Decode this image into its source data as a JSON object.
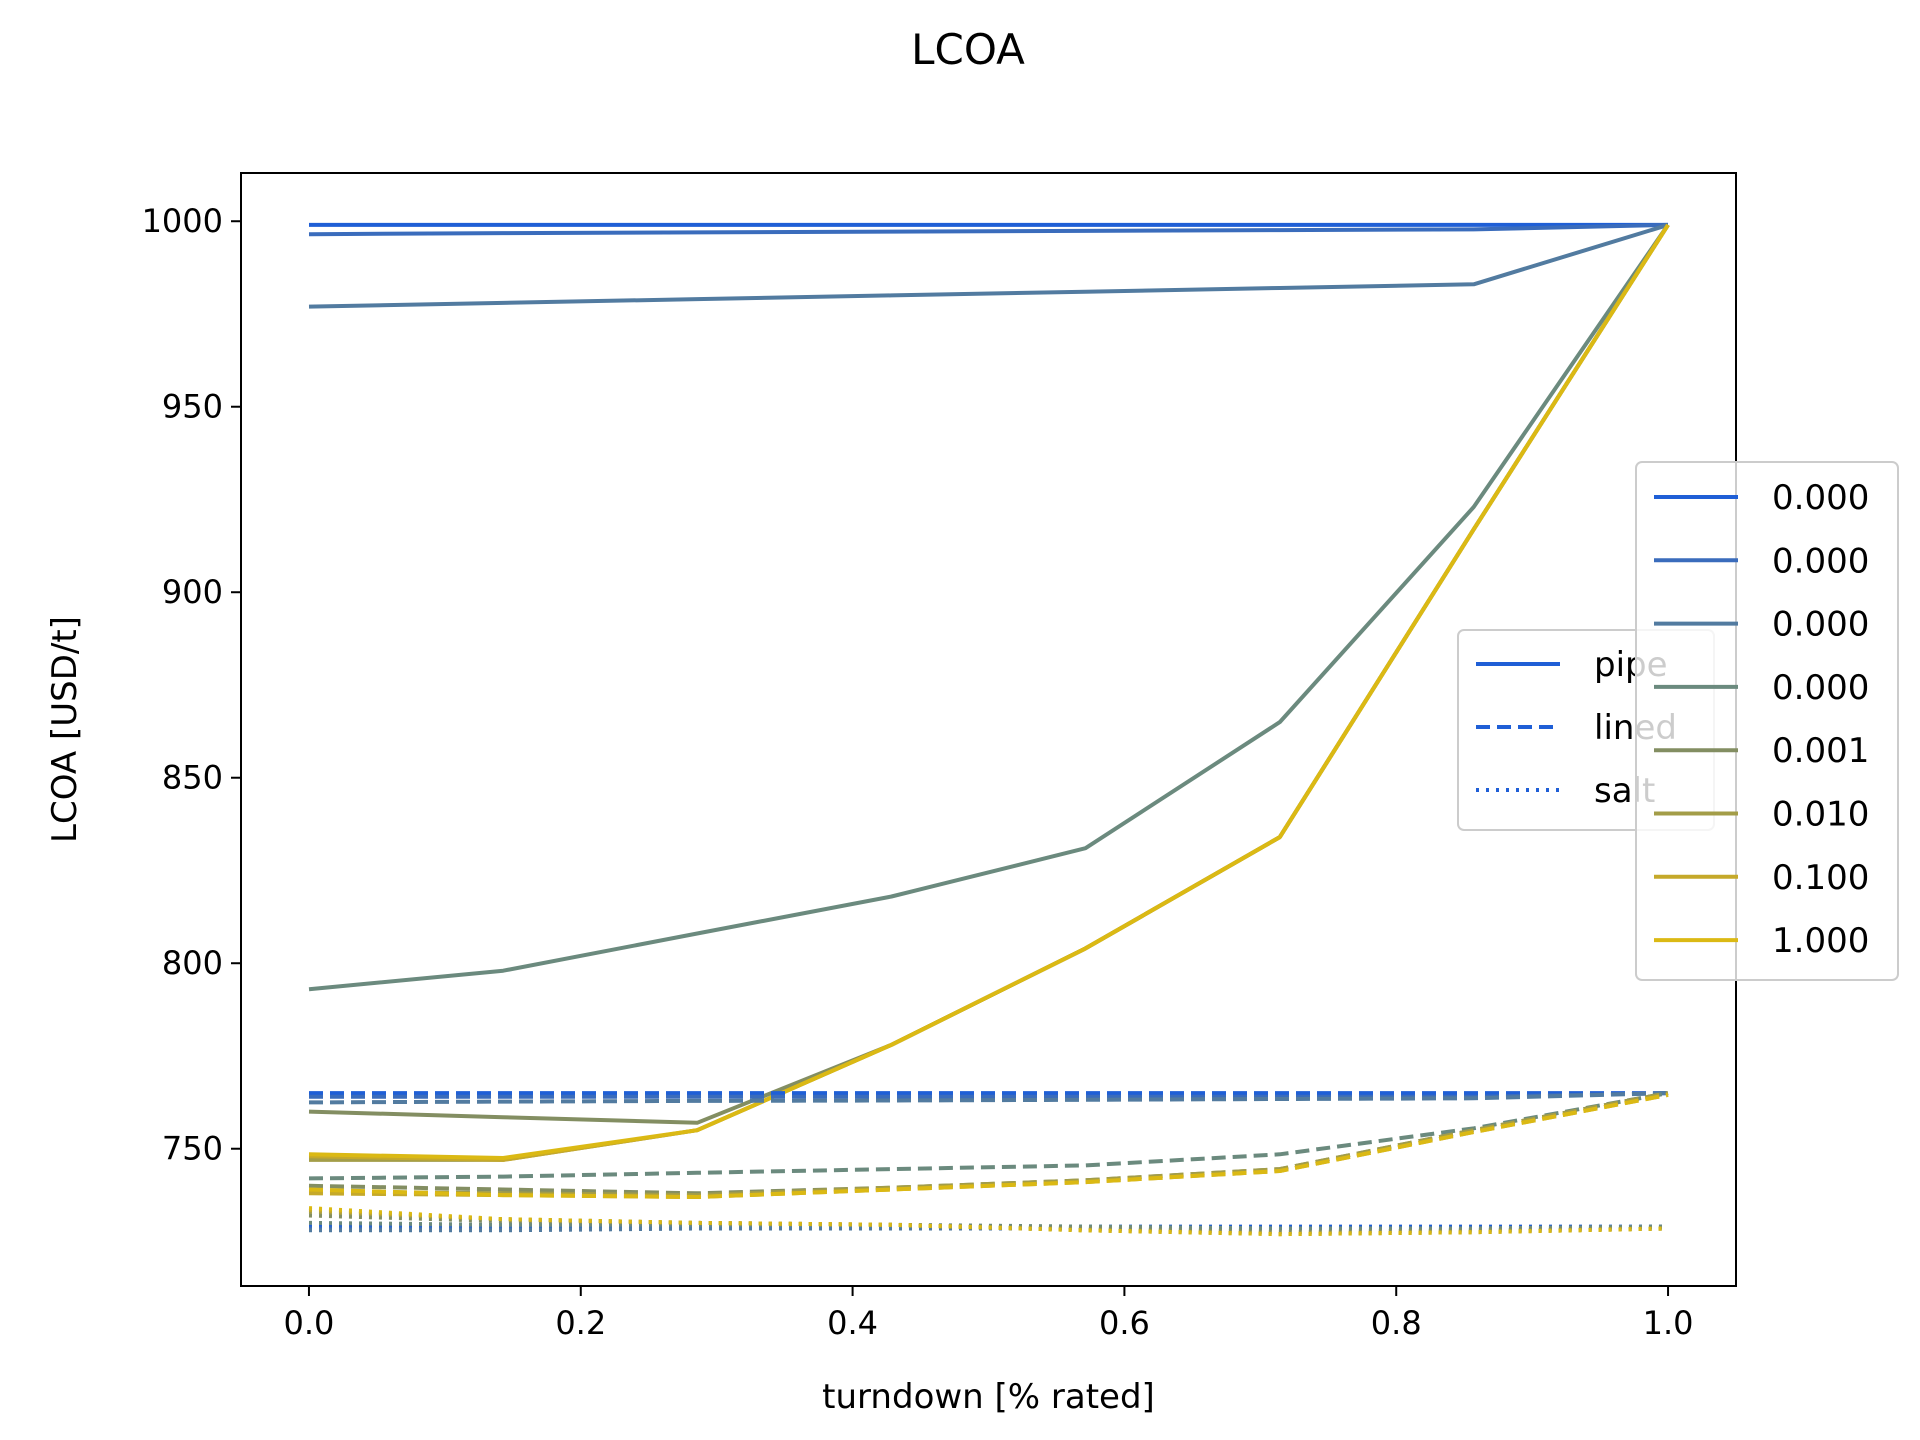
{
  "chart_data": {
    "type": "line",
    "title": "LCOA",
    "xlabel": "turndown [% rated]",
    "ylabel": "LCOA [USD/t]",
    "xlim": [
      -0.05,
      1.05
    ],
    "ylim": [
      713,
      1013
    ],
    "xticks": [
      0.0,
      0.2,
      0.4,
      0.6,
      0.8,
      1.0
    ],
    "xtick_labels": [
      "0.0",
      "0.2",
      "0.4",
      "0.6",
      "0.8",
      "1.0"
    ],
    "yticks": [
      750,
      800,
      850,
      900,
      950,
      1000
    ],
    "ytick_labels": [
      "750",
      "800",
      "850",
      "900",
      "950",
      "1000"
    ],
    "grid": false,
    "x": [
      0.0,
      0.1429,
      0.2857,
      0.4286,
      0.5714,
      0.7143,
      0.8571,
      1.0
    ],
    "storage_legend": {
      "placement": "center-right",
      "entries": [
        {
          "label": "pipe",
          "style": "solid"
        },
        {
          "label": "lined",
          "style": "dashed"
        },
        {
          "label": "salt",
          "style": "dotted"
        }
      ]
    },
    "color_legend": {
      "placement": "right, outside",
      "entries": [
        {
          "label": "0.000",
          "color": "#1f5fd6"
        },
        {
          "label": "0.000",
          "color": "#3a6cbc"
        },
        {
          "label": "0.000",
          "color": "#527ba0"
        },
        {
          "label": "0.000",
          "color": "#6b8a7e"
        },
        {
          "label": "0.001",
          "color": "#838e62"
        },
        {
          "label": "0.010",
          "color": "#a39d48"
        },
        {
          "label": "0.100",
          "color": "#c5a92a"
        },
        {
          "label": "1.000",
          "color": "#dbb914"
        }
      ]
    },
    "series": [
      {
        "color_index": 0,
        "style": "solid",
        "values": [
          999,
          999,
          999,
          999,
          999,
          999,
          999,
          999
        ]
      },
      {
        "color_index": 1,
        "style": "solid",
        "values": [
          996.5,
          996.8,
          997,
          997.2,
          997.4,
          997.6,
          997.8,
          999
        ]
      },
      {
        "color_index": 2,
        "style": "solid",
        "values": [
          977,
          978,
          979,
          980,
          981,
          982,
          983,
          999
        ]
      },
      {
        "color_index": 3,
        "style": "solid",
        "values": [
          793,
          798,
          808,
          818,
          831,
          865,
          923,
          999
        ]
      },
      {
        "color_index": 4,
        "style": "solid",
        "values": [
          760,
          758.5,
          757,
          778,
          804,
          834,
          917,
          999
        ]
      },
      {
        "color_index": 5,
        "style": "solid",
        "values": [
          747,
          747,
          755,
          778,
          804,
          834,
          917,
          999
        ]
      },
      {
        "color_index": 6,
        "style": "solid",
        "values": [
          748,
          747,
          755,
          778,
          804,
          834,
          917,
          999
        ]
      },
      {
        "color_index": 7,
        "style": "solid",
        "values": [
          748.5,
          747.5,
          755,
          778,
          804,
          834,
          917,
          999
        ]
      },
      {
        "color_index": 0,
        "style": "dashed",
        "values": [
          765,
          765,
          765,
          765,
          765,
          765,
          765,
          765
        ]
      },
      {
        "color_index": 1,
        "style": "dashed",
        "values": [
          764,
          764,
          764,
          764,
          764,
          764,
          764,
          765
        ]
      },
      {
        "color_index": 2,
        "style": "dashed",
        "values": [
          762.5,
          762.7,
          762.9,
          763,
          763.2,
          763.4,
          763.6,
          765
        ]
      },
      {
        "color_index": 3,
        "style": "dashed",
        "values": [
          742,
          742.5,
          743.5,
          744.5,
          745.5,
          748.5,
          755.5,
          765
        ]
      },
      {
        "color_index": 4,
        "style": "dashed",
        "values": [
          740,
          739,
          738,
          739.5,
          741.5,
          744.5,
          755,
          765
        ]
      },
      {
        "color_index": 5,
        "style": "dashed",
        "values": [
          738.5,
          738,
          737.5,
          739.5,
          741.5,
          744.5,
          755,
          765
        ]
      },
      {
        "color_index": 6,
        "style": "dashed",
        "values": [
          738,
          737.5,
          737,
          739,
          741,
          744,
          754.5,
          764.5
        ]
      },
      {
        "color_index": 7,
        "style": "dashed",
        "values": [
          739,
          737.5,
          737,
          739,
          741,
          744,
          754.5,
          764.5
        ]
      },
      {
        "color_index": 0,
        "style": "dotted",
        "values": [
          729,
          729,
          729,
          729,
          729,
          729,
          729,
          729
        ]
      },
      {
        "color_index": 1,
        "style": "dotted",
        "values": [
          728.5,
          728.5,
          728.5,
          728.5,
          728.5,
          728.5,
          728.5,
          729
        ]
      },
      {
        "color_index": 2,
        "style": "dotted",
        "values": [
          728,
          728,
          728.5,
          728.5,
          728.5,
          728.5,
          728.5,
          729
        ]
      },
      {
        "color_index": 3,
        "style": "dotted",
        "values": [
          730,
          729.5,
          729.5,
          729.5,
          729,
          728.5,
          728.5,
          729
        ]
      },
      {
        "color_index": 4,
        "style": "dotted",
        "values": [
          732,
          730.5,
          730,
          729.5,
          728.5,
          727.5,
          728,
          728.5
        ]
      },
      {
        "color_index": 5,
        "style": "dotted",
        "values": [
          733,
          731,
          730,
          729.5,
          728,
          727,
          727.5,
          728.5
        ]
      },
      {
        "color_index": 6,
        "style": "dotted",
        "values": [
          733.5,
          731,
          730,
          729.5,
          728,
          727,
          727.5,
          728.5
        ]
      },
      {
        "color_index": 7,
        "style": "dotted",
        "values": [
          734,
          731,
          730,
          729.5,
          728,
          727,
          727.5,
          728.5
        ]
      }
    ]
  }
}
